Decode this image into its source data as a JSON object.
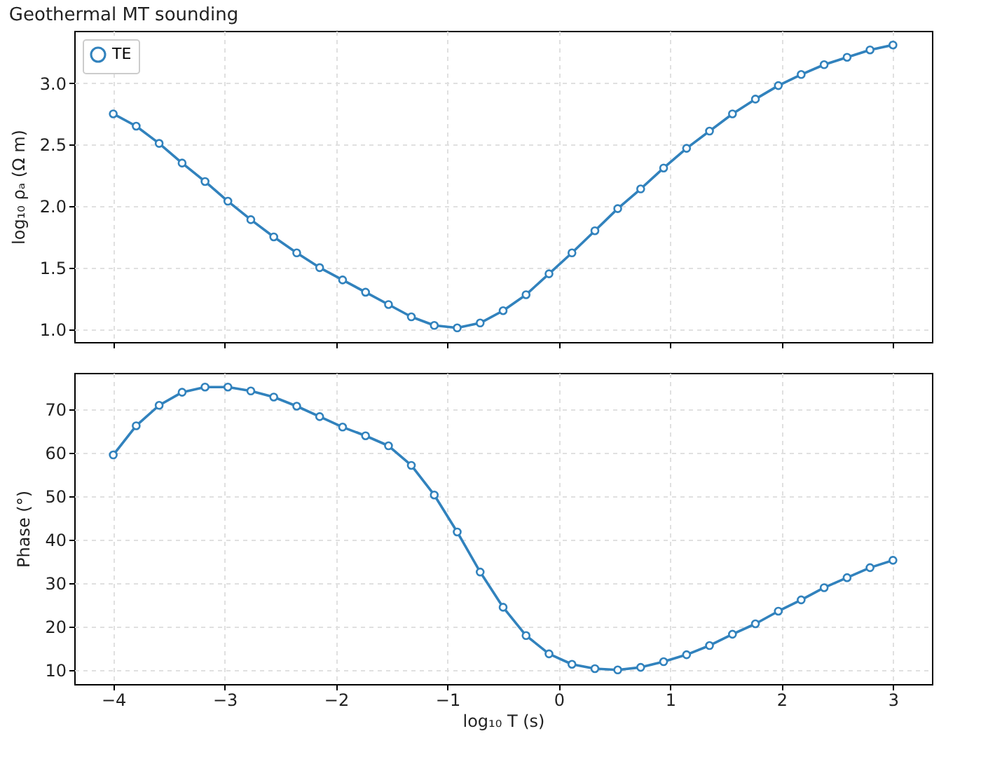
{
  "chart_data": [
    {
      "type": "line",
      "title": "Geothermal MT sounding",
      "ylabel": "log₁₀ ρₐ (Ω m)",
      "x": [
        -4,
        -3.794,
        -3.588,
        -3.382,
        -3.176,
        -2.971,
        -2.765,
        -2.559,
        -2.353,
        -2.147,
        -1.941,
        -1.735,
        -1.529,
        -1.324,
        -1.118,
        -0.912,
        -0.706,
        -0.5,
        -0.294,
        -0.088,
        0.118,
        0.324,
        0.529,
        0.735,
        0.941,
        1.147,
        1.353,
        1.559,
        1.765,
        1.971,
        2.176,
        2.382,
        2.588,
        2.794,
        3
      ],
      "series": [
        {
          "name": "TE",
          "color": "#3182bd",
          "values": [
            2.75,
            2.65,
            2.51,
            2.35,
            2.2,
            2.04,
            1.89,
            1.75,
            1.62,
            1.5,
            1.4,
            1.3,
            1.2,
            1.1,
            1.03,
            1.01,
            1.05,
            1.15,
            1.28,
            1.45,
            1.62,
            1.8,
            1.98,
            2.14,
            2.31,
            2.47,
            2.61,
            2.75,
            2.87,
            2.98,
            3.07,
            3.15,
            3.21,
            3.27,
            3.31
          ]
        }
      ],
      "xlim": [
        -4.35,
        3.35
      ],
      "xticks": [
        {
          "value": -4,
          "label": null
        },
        {
          "value": -3,
          "label": null
        },
        {
          "value": -2,
          "label": null
        },
        {
          "value": -1,
          "label": null
        },
        {
          "value": 0,
          "label": null
        },
        {
          "value": 1,
          "label": null
        },
        {
          "value": 2,
          "label": null
        },
        {
          "value": 3,
          "label": null
        }
      ],
      "ylim": [
        0.895,
        3.425
      ],
      "yticks": [
        {
          "value": 1,
          "label": "1.0"
        },
        1.5,
        {
          "value": 2,
          "label": "2.0"
        },
        2.5,
        {
          "value": 3,
          "label": "3.0"
        }
      ],
      "tick_labels": "y",
      "grid": true,
      "legend": "top left",
      "marker": "circle",
      "line_style": "solid"
    },
    {
      "type": "line",
      "xlabel": "log₁₀ T (s)",
      "ylabel": "Phase (°)",
      "x": [
        -4,
        -3.794,
        -3.588,
        -3.382,
        -3.176,
        -2.971,
        -2.765,
        -2.559,
        -2.353,
        -2.147,
        -1.941,
        -1.735,
        -1.529,
        -1.324,
        -1.118,
        -0.912,
        -0.706,
        -0.5,
        -0.294,
        -0.088,
        0.118,
        0.324,
        0.529,
        0.735,
        0.941,
        1.147,
        1.353,
        1.559,
        1.765,
        1.971,
        2.176,
        2.382,
        2.588,
        2.794,
        3
      ],
      "series": [
        {
          "color": "#3182bd",
          "values": [
            59.5,
            66.2,
            70.9,
            73.9,
            75.1,
            75.1,
            74.2,
            72.8,
            70.7,
            68.3,
            65.9,
            63.9,
            61.6,
            57.1,
            50.3,
            41.8,
            32.6,
            24.5,
            18.0,
            13.8,
            11.4,
            10.4,
            10.1,
            10.7,
            12.0,
            13.6,
            15.7,
            18.3,
            20.7,
            23.6,
            26.2,
            29.0,
            31.3,
            33.6,
            35.3
          ]
        }
      ],
      "xlim": [
        -4.35,
        3.35
      ],
      "xticks": [
        -4,
        -3,
        -2,
        -1,
        0,
        1,
        2,
        3
      ],
      "ylim": [
        6.85,
        78.35
      ],
      "yticks": [
        10,
        20,
        30,
        40,
        50,
        60,
        70
      ],
      "grid": true,
      "marker": "circle",
      "line_style": "solid"
    }
  ]
}
